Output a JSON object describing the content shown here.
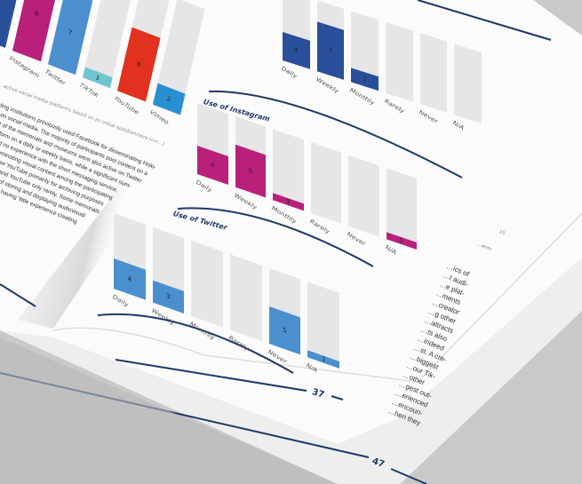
{
  "colors": {
    "background": "#c9c9c9",
    "paper": "#fbfbfb",
    "navy": "#1f3767",
    "facebook": "#2a4f9a",
    "instagram": "#b8207a",
    "twitter": "#4a90cf",
    "tiktok": "#6fc6d0",
    "youtube": "#e0321f",
    "vimeo": "#2a8fd0",
    "empty_bar": "#e6e6e6"
  },
  "left_page": {
    "caption": "… active social media platforms based on an initial questionnaire (n=…)",
    "body_lines": [
      "…ting institutions previously used Facebook for disseminating Holo-",
      "…r on social media. The majority of participants post content on a",
      "…ost of the memorials and museums were also active on Twitter",
      "…platform on a daily or weekly basis, while a significant num-",
      "…ts had no experience with the short messaging service.",
      "…e disseminating visual content among the participating",
      "…e they use YouTube primarily for archiving purposes",
      "…kly basis and YouTube only rarely. Some memorials",
      "…e purpose of storing and displaying audiovisual",
      "…emphasized having 'little experience creating"
    ],
    "page_number": "47"
  },
  "right_page": {
    "column_fragments": [
      "…ics of",
      "…t audi-",
      "…e plat-",
      "…ments",
      "…creator",
      "…g other",
      "…attracts",
      "…ts also",
      "…indeed",
      "…st. A cre-",
      "…biggest",
      "…our Tik-",
      "…other",
      "…gest out-",
      "…erienced",
      "…encoun-",
      "…hen they"
    ],
    "side_number": "15",
    "side_label": "…ients",
    "page_number": "37"
  },
  "chart_data": [
    {
      "type": "bar",
      "title": "",
      "categories": [
        "…book",
        "Instagram",
        "Twitter",
        "TikTok",
        "YouTube",
        "Vimeo"
      ],
      "values": [
        null,
        8,
        7,
        1,
        6,
        2
      ],
      "ylim": [
        0,
        10
      ],
      "colors": [
        "#2a4f9a",
        "#b8207a",
        "#4a90cf",
        "#6fc6d0",
        "#e0321f",
        "#2a8fd0"
      ]
    },
    {
      "type": "bar",
      "title": "",
      "categories": [
        "Daily",
        "Weekly",
        "Monthly",
        "Rarely",
        "Never",
        "N/A"
      ],
      "values": [
        4,
        7,
        2,
        0,
        0,
        0
      ],
      "ylim": [
        0,
        10
      ],
      "color": "#2a4f9a"
    },
    {
      "type": "bar",
      "title": "Use of Instagram",
      "categories": [
        "Daily",
        "Weekly",
        "Monthly",
        "Rarely",
        "Never",
        "N/A"
      ],
      "values": [
        4,
        6,
        1,
        0,
        0,
        1
      ],
      "ylim": [
        0,
        10
      ],
      "color": "#b8207a"
    },
    {
      "type": "bar",
      "title": "Use of Twitter",
      "categories": [
        "Daily",
        "Weekly",
        "Monthly",
        "Rarely",
        "Never",
        "N/A"
      ],
      "values": [
        4,
        3,
        0,
        0,
        5,
        1
      ],
      "ylim": [
        0,
        10
      ],
      "color": "#4a90cf"
    }
  ]
}
